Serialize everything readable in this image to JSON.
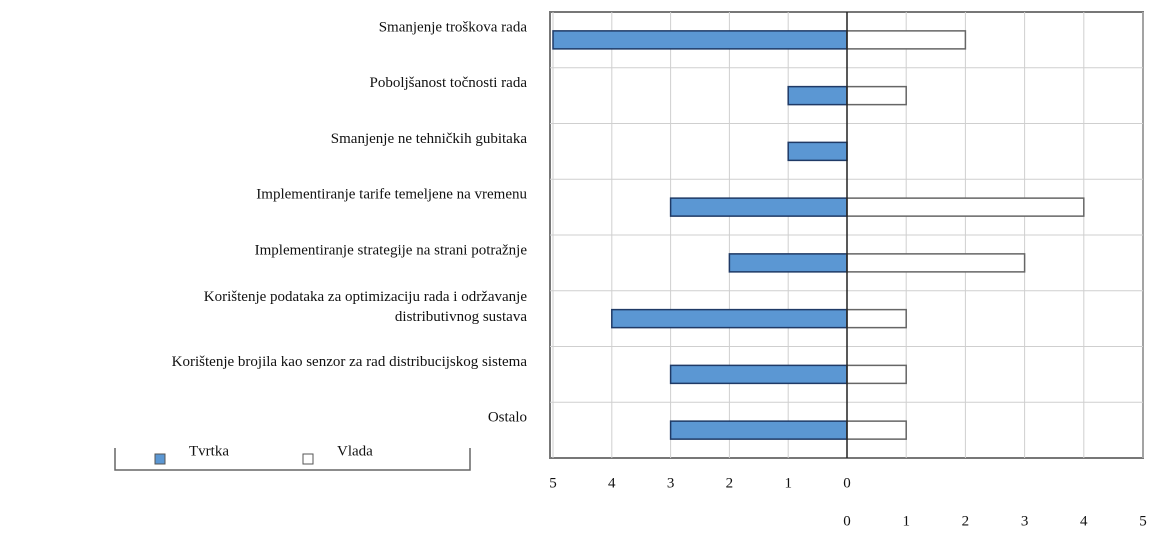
{
  "chart_data": {
    "type": "butterfly_bar",
    "categories": [
      "Smanjenje troškova rada",
      "Poboljšanost točnosti rada",
      "Smanjenje ne tehničkih gubitaka",
      "Implementiranje tarife temeljene na vremenu",
      "Implementiranje strategije na strani potražnje",
      [
        "Korištenje podataka za optimizaciju rada i održavanje",
        "distributivnog sustava"
      ],
      "Korištenje brojila kao senzor za rad distribucijskog sistema",
      "Ostalo"
    ],
    "series": [
      {
        "name": "Tvrtka",
        "color": "#5b97d3",
        "side": "left",
        "values": [
          5,
          1,
          1,
          3,
          2,
          4,
          3,
          3
        ]
      },
      {
        "name": "Vlada",
        "color": "#ffffff",
        "side": "right",
        "values": [
          2,
          1,
          0,
          4,
          3,
          1,
          1,
          1
        ]
      }
    ],
    "xlim_left": [
      0,
      5
    ],
    "xticks_left": [
      5,
      4,
      3,
      2,
      1,
      0
    ],
    "xlim_right": [
      0,
      5
    ],
    "xticks_right": [
      0,
      1,
      2,
      3,
      4,
      5
    ],
    "grid": true
  }
}
